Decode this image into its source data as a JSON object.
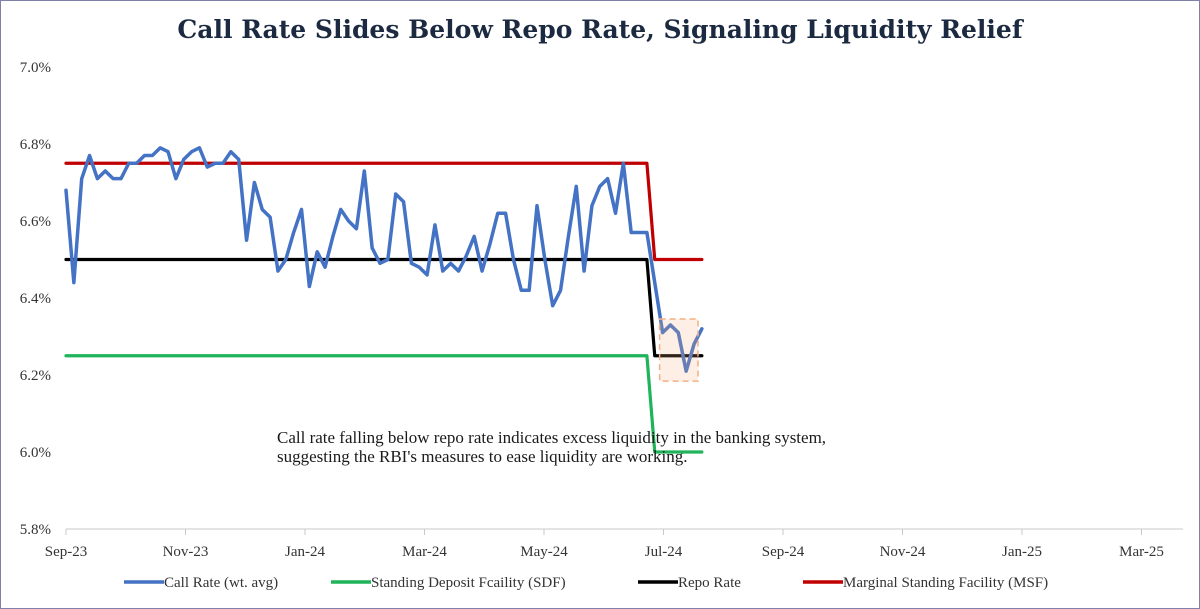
{
  "title": "Call Rate Slides Below Repo Rate, Signaling Liquidity Relief",
  "annotation": "Call rate falling below repo rate indicates excess liquidity in the banking system, suggesting the RBI's measures to ease liquidity are working.",
  "chart_data": {
    "type": "line",
    "title": "Call Rate Slides Below Repo Rate, Signaling Liquidity Relief",
    "ylim": [
      5.8,
      7.0
    ],
    "yticks": [
      "7.0%",
      "6.8%",
      "6.6%",
      "6.4%",
      "6.2%",
      "6.0%",
      "5.8%"
    ],
    "xticks": [
      "Sep-23",
      "Nov-23",
      "Jan-24",
      "Mar-24",
      "May-24",
      "Jul-24",
      "Sep-24",
      "Nov-24",
      "Jan-25",
      "Mar-25"
    ],
    "legend_position": "bottom",
    "highlight": {
      "series": "Call Rate (wt. avg)",
      "from_index": 76,
      "to_index": 79,
      "color": "#f4b183"
    },
    "series": [
      {
        "name": "Call Rate (wt. avg)",
        "color": "#4472c4",
        "values": [
          6.68,
          6.44,
          6.71,
          6.77,
          6.71,
          6.73,
          6.71,
          6.71,
          6.75,
          6.75,
          6.77,
          6.77,
          6.79,
          6.78,
          6.71,
          6.76,
          6.78,
          6.79,
          6.74,
          6.75,
          6.75,
          6.78,
          6.76,
          6.55,
          6.7,
          6.63,
          6.61,
          6.47,
          6.5,
          6.57,
          6.63,
          6.43,
          6.52,
          6.48,
          6.56,
          6.63,
          6.6,
          6.58,
          6.73,
          6.53,
          6.49,
          6.5,
          6.67,
          6.65,
          6.49,
          6.48,
          6.46,
          6.59,
          6.47,
          6.49,
          6.47,
          6.51,
          6.56,
          6.47,
          6.54,
          6.62,
          6.62,
          6.5,
          6.42,
          6.42,
          6.64,
          6.5,
          6.38,
          6.42,
          6.56,
          6.69,
          6.47,
          6.64,
          6.69,
          6.71,
          6.62,
          6.75,
          6.57,
          6.57,
          6.57,
          6.44,
          6.31,
          6.33,
          6.31,
          6.21,
          6.28,
          6.32
        ]
      },
      {
        "name": "Standing Deposit Fcaility (SDF)",
        "color": "#1fb45a",
        "values": [
          6.25,
          6.25,
          6.25,
          6.25,
          6.25,
          6.25,
          6.25,
          6.25,
          6.25,
          6.25,
          6.25,
          6.25,
          6.25,
          6.25,
          6.25,
          6.25,
          6.25,
          6.25,
          6.25,
          6.25,
          6.25,
          6.25,
          6.25,
          6.25,
          6.25,
          6.25,
          6.25,
          6.25,
          6.25,
          6.25,
          6.25,
          6.25,
          6.25,
          6.25,
          6.25,
          6.25,
          6.25,
          6.25,
          6.25,
          6.25,
          6.25,
          6.25,
          6.25,
          6.25,
          6.25,
          6.25,
          6.25,
          6.25,
          6.25,
          6.25,
          6.25,
          6.25,
          6.25,
          6.25,
          6.25,
          6.25,
          6.25,
          6.25,
          6.25,
          6.25,
          6.25,
          6.25,
          6.25,
          6.25,
          6.25,
          6.25,
          6.25,
          6.25,
          6.25,
          6.25,
          6.25,
          6.25,
          6.25,
          6.25,
          6.25,
          6.0,
          6.0,
          6.0,
          6.0,
          6.0,
          6.0,
          6.0
        ]
      },
      {
        "name": "Repo Rate",
        "color": "#000000",
        "values": [
          6.5,
          6.5,
          6.5,
          6.5,
          6.5,
          6.5,
          6.5,
          6.5,
          6.5,
          6.5,
          6.5,
          6.5,
          6.5,
          6.5,
          6.5,
          6.5,
          6.5,
          6.5,
          6.5,
          6.5,
          6.5,
          6.5,
          6.5,
          6.5,
          6.5,
          6.5,
          6.5,
          6.5,
          6.5,
          6.5,
          6.5,
          6.5,
          6.5,
          6.5,
          6.5,
          6.5,
          6.5,
          6.5,
          6.5,
          6.5,
          6.5,
          6.5,
          6.5,
          6.5,
          6.5,
          6.5,
          6.5,
          6.5,
          6.5,
          6.5,
          6.5,
          6.5,
          6.5,
          6.5,
          6.5,
          6.5,
          6.5,
          6.5,
          6.5,
          6.5,
          6.5,
          6.5,
          6.5,
          6.5,
          6.5,
          6.5,
          6.5,
          6.5,
          6.5,
          6.5,
          6.5,
          6.5,
          6.5,
          6.5,
          6.5,
          6.25,
          6.25,
          6.25,
          6.25,
          6.25,
          6.25,
          6.25
        ]
      },
      {
        "name": "Marginal Standing Facility (MSF)",
        "color": "#c00000",
        "values": [
          6.75,
          6.75,
          6.75,
          6.75,
          6.75,
          6.75,
          6.75,
          6.75,
          6.75,
          6.75,
          6.75,
          6.75,
          6.75,
          6.75,
          6.75,
          6.75,
          6.75,
          6.75,
          6.75,
          6.75,
          6.75,
          6.75,
          6.75,
          6.75,
          6.75,
          6.75,
          6.75,
          6.75,
          6.75,
          6.75,
          6.75,
          6.75,
          6.75,
          6.75,
          6.75,
          6.75,
          6.75,
          6.75,
          6.75,
          6.75,
          6.75,
          6.75,
          6.75,
          6.75,
          6.75,
          6.75,
          6.75,
          6.75,
          6.75,
          6.75,
          6.75,
          6.75,
          6.75,
          6.75,
          6.75,
          6.75,
          6.75,
          6.75,
          6.75,
          6.75,
          6.75,
          6.75,
          6.75,
          6.75,
          6.75,
          6.75,
          6.75,
          6.75,
          6.75,
          6.75,
          6.75,
          6.75,
          6.75,
          6.75,
          6.75,
          6.5,
          6.5,
          6.5,
          6.5,
          6.5,
          6.5,
          6.5
        ]
      }
    ]
  }
}
